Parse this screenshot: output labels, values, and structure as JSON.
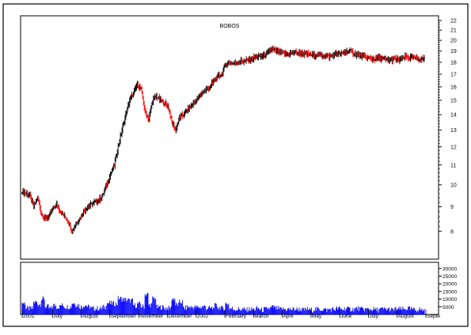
{
  "chart_data": [
    {
      "type": "ohlc",
      "title": "BOBOS",
      "xlabel": "",
      "ylabel": "",
      "ylim": [
        7,
        22.5
      ],
      "yscale": "log",
      "yticks": [
        8,
        9,
        10,
        11,
        12,
        13,
        14,
        15,
        16,
        17,
        18,
        19,
        20,
        21,
        22
      ],
      "month_labels": [
        "2001",
        "July",
        "August",
        "September",
        "November",
        "December",
        "2002",
        "February",
        "March",
        "April",
        "May",
        "June",
        "July",
        "August",
        "Septe"
      ],
      "grid": false,
      "colors": {
        "up": "#000000",
        "down": "#ff0000"
      },
      "series": [
        {
          "close": [
            9.7,
            9.6,
            9.5,
            9.0,
            9.4,
            8.7,
            8.5,
            8.6,
            8.9,
            9.1,
            8.8,
            8.6,
            8.4,
            8.0,
            8.3,
            8.5,
            8.8,
            9.0,
            9.1,
            9.2,
            9.3,
            9.5,
            10.0,
            10.5,
            11.0,
            12.0,
            13.0,
            14.0,
            15.0,
            15.5,
            16.2,
            15.8,
            14.2,
            13.7,
            15.0,
            15.3,
            15.0,
            14.8,
            14.6,
            13.5,
            13.0,
            13.8,
            14.0,
            14.3,
            14.6,
            14.9,
            15.2,
            15.6,
            15.8,
            16.0,
            16.5,
            16.8,
            17.0,
            17.8,
            18.0,
            17.9,
            18.0,
            18.1,
            18.1,
            18.2,
            18.3,
            18.5,
            18.5,
            18.6,
            18.8,
            19.2,
            19.0,
            18.9,
            18.8,
            18.7,
            18.8,
            18.9,
            18.8,
            18.8,
            18.7,
            18.7,
            18.6,
            18.7,
            18.6,
            18.6,
            18.5,
            18.6,
            18.8,
            18.7,
            18.9,
            19.0,
            18.9,
            18.7,
            18.6,
            18.5,
            18.4,
            18.3,
            18.3,
            18.4,
            18.3,
            18.2,
            18.2,
            18.3,
            18.2,
            18.3,
            18.5,
            18.4,
            18.4,
            18.3,
            18.3
          ]
        },
        {
          "volume_yticks": [
            5000,
            10000,
            15000,
            20000,
            25000,
            30000
          ],
          "volume_ylim": [
            0,
            34000
          ]
        }
      ]
    }
  ]
}
